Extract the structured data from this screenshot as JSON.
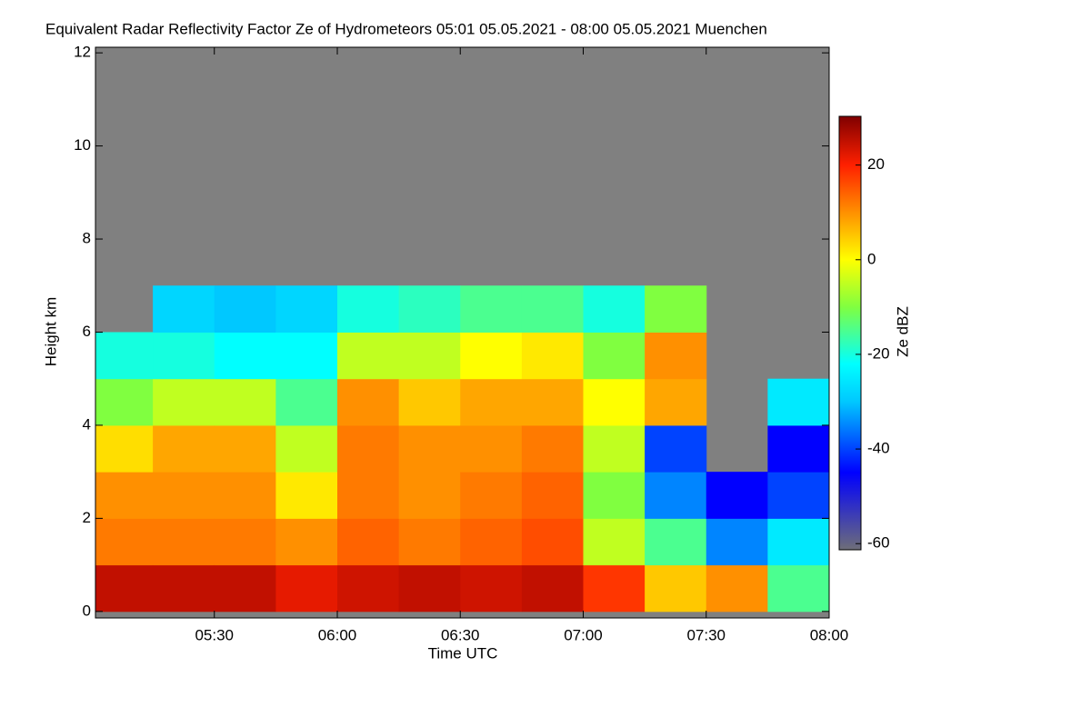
{
  "chart_data": {
    "type": "heatmap",
    "title": "Equivalent Radar Reflectivity Factor Ze of Hydrometeors   05:01 05.05.2021 - 08:00 05.05.2021 Muenchen",
    "xlabel": "Time UTC",
    "ylabel": "Height km",
    "colorbar_label": "Ze dBZ",
    "xlim": [
      301,
      480
    ],
    "xticks": [
      {
        "value": 330,
        "label": "05:30"
      },
      {
        "value": 360,
        "label": "06:00"
      },
      {
        "value": 390,
        "label": "06:30"
      },
      {
        "value": 420,
        "label": "07:00"
      },
      {
        "value": 450,
        "label": "07:30"
      },
      {
        "value": 480,
        "label": "08:00"
      }
    ],
    "ylim": [
      -0.14,
      12.12
    ],
    "yticks": [
      0,
      2,
      4,
      6,
      8,
      10,
      12
    ],
    "zlim": [
      -61.3,
      30.3
    ],
    "zticks": [
      20,
      0,
      -20,
      -40,
      -60
    ],
    "background": "#808080",
    "colorscale": [
      [
        -61.3,
        "#6e6e78"
      ],
      [
        -45,
        "#0000ff"
      ],
      [
        -30,
        "#00c8ff"
      ],
      [
        -22,
        "#00ffff"
      ],
      [
        -10,
        "#80ff40"
      ],
      [
        0,
        "#ffff00"
      ],
      [
        10,
        "#ff9000"
      ],
      [
        20,
        "#ff2000"
      ],
      [
        30.3,
        "#800000"
      ]
    ],
    "x_bins": [
      301,
      315,
      330,
      345,
      360,
      375,
      390,
      405,
      420,
      435,
      450,
      465,
      480
    ],
    "y_bins": [
      0,
      1,
      2,
      3,
      4,
      5,
      6,
      7,
      8,
      9,
      10,
      11,
      12
    ],
    "z": [
      [
        25,
        12,
        10,
        3,
        -10,
        -20,
        null,
        null,
        null,
        null,
        null,
        null
      ],
      [
        25,
        12,
        10,
        8,
        -5,
        -20,
        -28,
        null,
        null,
        null,
        null,
        null
      ],
      [
        25,
        12,
        10,
        8,
        -5,
        -22,
        -30,
        null,
        null,
        null,
        null,
        null
      ],
      [
        22,
        10,
        2,
        -5,
        -15,
        -22,
        -28,
        null,
        null,
        null,
        null,
        null
      ],
      [
        24,
        14,
        12,
        12,
        10,
        -5,
        -20,
        null,
        null,
        null,
        null,
        null
      ],
      [
        25,
        12,
        10,
        10,
        5,
        -5,
        -18,
        null,
        null,
        null,
        null,
        null
      ],
      [
        24,
        14,
        12,
        10,
        8,
        0,
        -15,
        null,
        null,
        null,
        null,
        null
      ],
      [
        25,
        16,
        14,
        12,
        8,
        2,
        -15,
        null,
        null,
        null,
        null,
        null
      ],
      [
        18,
        -5,
        -10,
        -5,
        0,
        -10,
        -20,
        null,
        null,
        null,
        null,
        null
      ],
      [
        5,
        -15,
        -35,
        -40,
        8,
        10,
        -10,
        null,
        null,
        null,
        null,
        null
      ],
      [
        10,
        -35,
        -45,
        null,
        null,
        null,
        null,
        null,
        null,
        null,
        null,
        null
      ],
      [
        -15,
        -25,
        -40,
        -45,
        -25,
        null,
        null,
        null,
        null,
        null,
        null,
        null
      ]
    ]
  }
}
